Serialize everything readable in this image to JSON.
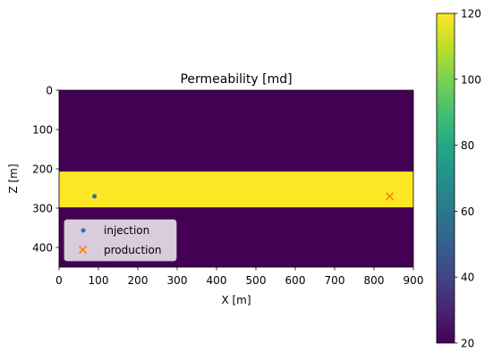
{
  "chart_data": {
    "type": "heatmap",
    "title": "Permeability [md]",
    "xlabel": "X [m]",
    "ylabel": "Z [m]",
    "xlim": [
      0,
      900
    ],
    "ylim": [
      450,
      0
    ],
    "y_axis_inverted": true,
    "xticks": [
      0,
      100,
      200,
      300,
      400,
      500,
      600,
      700,
      800,
      900
    ],
    "yticks": [
      0,
      100,
      200,
      300,
      400
    ],
    "grid": false,
    "field": {
      "background_value": 20,
      "layers": [
        {
          "z_from": 207,
          "z_to": 298,
          "value": 120
        }
      ]
    },
    "colorbar": {
      "colormap": "viridis",
      "range": [
        20,
        120
      ],
      "ticks": [
        20,
        40,
        60,
        80,
        100,
        120
      ]
    },
    "series": [
      {
        "name": "injection",
        "marker": "dot",
        "color": "#1f77b4",
        "points": [
          {
            "x": 90,
            "y": 270
          }
        ]
      },
      {
        "name": "production",
        "marker": "x",
        "color": "#ff7f0e",
        "points": [
          {
            "x": 840,
            "y": 270
          }
        ]
      }
    ],
    "legend_position": "lower-left"
  }
}
